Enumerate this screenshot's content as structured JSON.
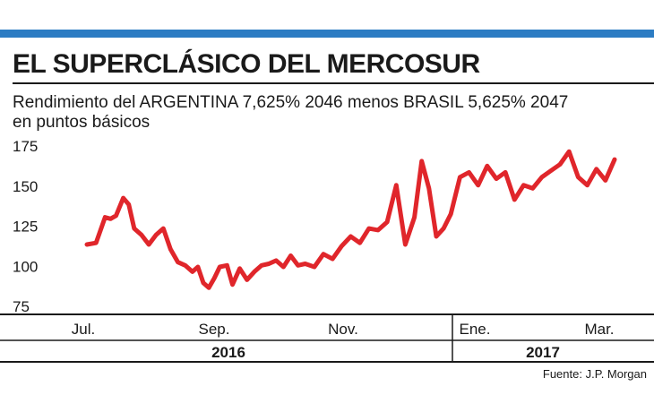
{
  "title": "EL SUPERCLÁSICO DEL MERCOSUR",
  "subtitle": {
    "line1": "Rendimiento del ARGENTINA 7,625% 2046 menos BRASIL 5,625% 2047",
    "line2": "en puntos básicos"
  },
  "source": "Fuente: J.P. Morgan",
  "colors": {
    "accent": "#2c7cc3",
    "line": "#e0262b"
  },
  "chart_data": {
    "type": "line",
    "title": "EL SUPERCLÁSICO DEL MERCOSUR",
    "ylabel": "puntos básicos",
    "ylim": [
      75,
      175
    ],
    "yticks": [
      175,
      150,
      125,
      100,
      75
    ],
    "months": [
      "Jul.",
      "Sep.",
      "Nov.",
      "Ene.",
      "Mar."
    ],
    "years": [
      "2016",
      "2017"
    ],
    "x_range": [
      0,
      29
    ],
    "month_positions": [
      0,
      8,
      16,
      23,
      29
    ],
    "series": [
      {
        "name": "ARGENTINA 2046 - BRASIL 2047",
        "x": [
          0,
          0.5,
          1,
          1.3,
          1.6,
          2.0,
          2.3,
          2.6,
          3.0,
          3.4,
          3.8,
          4.2,
          4.6,
          5.0,
          5.4,
          5.8,
          6.1,
          6.4,
          6.7,
          7.0,
          7.3,
          7.7,
          8.0,
          8.4,
          8.8,
          9.2,
          9.6,
          10.0,
          10.4,
          10.8,
          11.2,
          11.6,
          12.0,
          12.5,
          13.0,
          13.5,
          14.0,
          14.5,
          15.0,
          15.5,
          16.0,
          16.5,
          17.0,
          17.5,
          18.0,
          18.4,
          18.8,
          19.2,
          19.6,
          20.0,
          20.5,
          21.0,
          21.5,
          22.0,
          22.5,
          23.0,
          23.5,
          24.0,
          24.5,
          25.0,
          25.5,
          26.0,
          26.5,
          27.0,
          27.5,
          28.0,
          28.5,
          29.0
        ],
        "values": [
          113,
          114,
          130,
          129,
          131,
          142,
          138,
          123,
          119,
          113,
          119,
          123,
          110,
          102,
          100,
          96,
          99,
          89,
          86,
          92,
          99,
          100,
          88,
          98,
          91,
          96,
          100,
          101,
          103,
          99,
          106,
          100,
          101,
          99,
          107,
          104,
          112,
          118,
          114,
          123,
          122,
          127,
          150,
          113,
          130,
          165,
          148,
          118,
          123,
          132,
          155,
          158,
          150,
          162,
          154,
          158,
          141,
          150,
          148,
          155,
          159,
          163,
          171,
          155,
          150,
          160,
          153,
          166
        ]
      }
    ]
  }
}
